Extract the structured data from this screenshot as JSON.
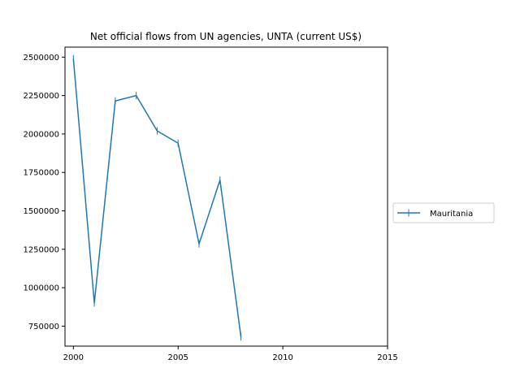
{
  "chart_data": {
    "type": "line",
    "title": "Net official flows from UN agencies, UNTA (current US$)",
    "xlabel": "",
    "ylabel": "",
    "xlim": [
      1999.6,
      2015
    ],
    "ylim": [
      620000,
      2565000
    ],
    "x_ticks": [
      2000,
      2005,
      2010,
      2015
    ],
    "y_ticks": [
      750000,
      1000000,
      1250000,
      1500000,
      1750000,
      2000000,
      2250000,
      2500000
    ],
    "grid": false,
    "legend_position": "right",
    "series": [
      {
        "name": "Mauritania",
        "color": "#1f77b4",
        "marker": "vertical-line",
        "x": [
          2000,
          2001,
          2002,
          2003,
          2004,
          2005,
          2006,
          2007,
          2008
        ],
        "y": [
          2490000,
          900000,
          2215000,
          2250000,
          2020000,
          1940000,
          1285000,
          1700000,
          680000
        ]
      }
    ]
  }
}
